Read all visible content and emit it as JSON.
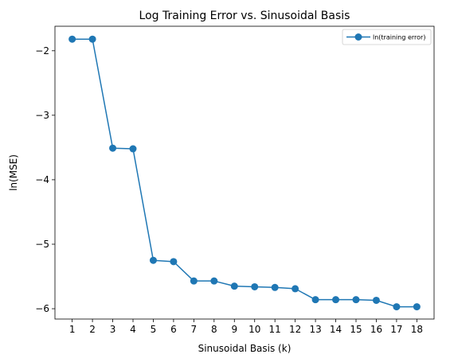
{
  "chart_data": {
    "type": "line",
    "title": "Log Training Error vs. Sinusoidal Basis",
    "xlabel": "Sinusoidal Basis (k)",
    "ylabel": "ln(MSE)",
    "x": [
      1,
      2,
      3,
      4,
      5,
      6,
      7,
      8,
      9,
      10,
      11,
      12,
      13,
      14,
      15,
      16,
      17,
      18
    ],
    "xticks": [
      "1",
      "2",
      "3",
      "4",
      "5",
      "6",
      "7",
      "8",
      "9",
      "10",
      "11",
      "12",
      "13",
      "14",
      "15",
      "16",
      "17",
      "18"
    ],
    "yticks": [
      "−2",
      "−3",
      "−4",
      "−5",
      "−6"
    ],
    "ytick_values": [
      -2,
      -3,
      -4,
      -5,
      -6
    ],
    "xlim": [
      0.15,
      18.85
    ],
    "ylim": [
      -6.16,
      -1.62
    ],
    "series": [
      {
        "name": "ln(training error)",
        "color": "#1f77b4",
        "marker": "circle",
        "values": [
          -1.82,
          -1.82,
          -3.51,
          -3.52,
          -5.25,
          -5.27,
          -5.57,
          -5.57,
          -5.65,
          -5.66,
          -5.67,
          -5.69,
          -5.86,
          -5.86,
          -5.86,
          -5.87,
          -5.97,
          -5.97
        ]
      }
    ],
    "legend_position": "top-right",
    "grid": false
  }
}
